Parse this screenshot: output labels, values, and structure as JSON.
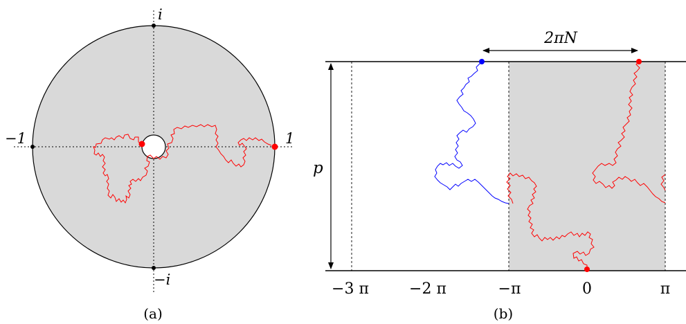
{
  "panel_a": {
    "caption": "(a)",
    "label_top": "i",
    "label_bottom": "−i",
    "label_left": "−1",
    "label_right": "1",
    "colors": {
      "disk_fill": "#d9d9d9",
      "path": "#ff0000",
      "point": "#ff0000",
      "axes": "#000000"
    }
  },
  "panel_b": {
    "caption": "(b)",
    "width_label": "2πN",
    "height_label": "p",
    "ticks": [
      "−3 π",
      "−2 π",
      "−π",
      "0",
      "π"
    ],
    "colors": {
      "strip_fill": "#d9d9d9",
      "red_path": "#ff0000",
      "blue_path": "#0000ff"
    }
  }
}
